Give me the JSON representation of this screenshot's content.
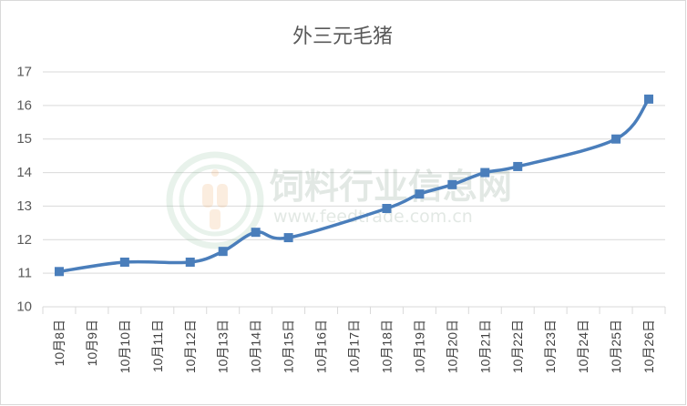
{
  "chart_data": {
    "type": "line",
    "title": "外三元毛猪",
    "xlabel": "",
    "ylabel": "",
    "categories": [
      "10月8日",
      "10月9日",
      "10月10日",
      "10月11日",
      "10月12日",
      "10月13日",
      "10月14日",
      "10月15日",
      "10月16日",
      "10月17日",
      "10月18日",
      "10月19日",
      "10月20日",
      "10月21日",
      "10月22日",
      "10月23日",
      "10月24日",
      "10月25日",
      "10月26日"
    ],
    "series": [
      {
        "values": [
          11.05,
          null,
          11.33,
          null,
          11.33,
          11.65,
          12.22,
          12.06,
          null,
          null,
          12.93,
          13.36,
          13.64,
          14.0,
          14.18,
          null,
          null,
          15.0,
          16.19
        ]
      }
    ],
    "ylim": [
      10,
      17
    ],
    "yticks": [
      10,
      11,
      12,
      13,
      14,
      15,
      16,
      17
    ],
    "grid": true,
    "smooth": true,
    "connect_gaps": true,
    "legend": "none",
    "colors": {
      "line": "#4A7EBB",
      "grid": "#D9D9D9",
      "text": "#595959"
    }
  },
  "watermark": {
    "name": "饲料行业信息网",
    "url": "www.feedtrade.com.cn"
  }
}
